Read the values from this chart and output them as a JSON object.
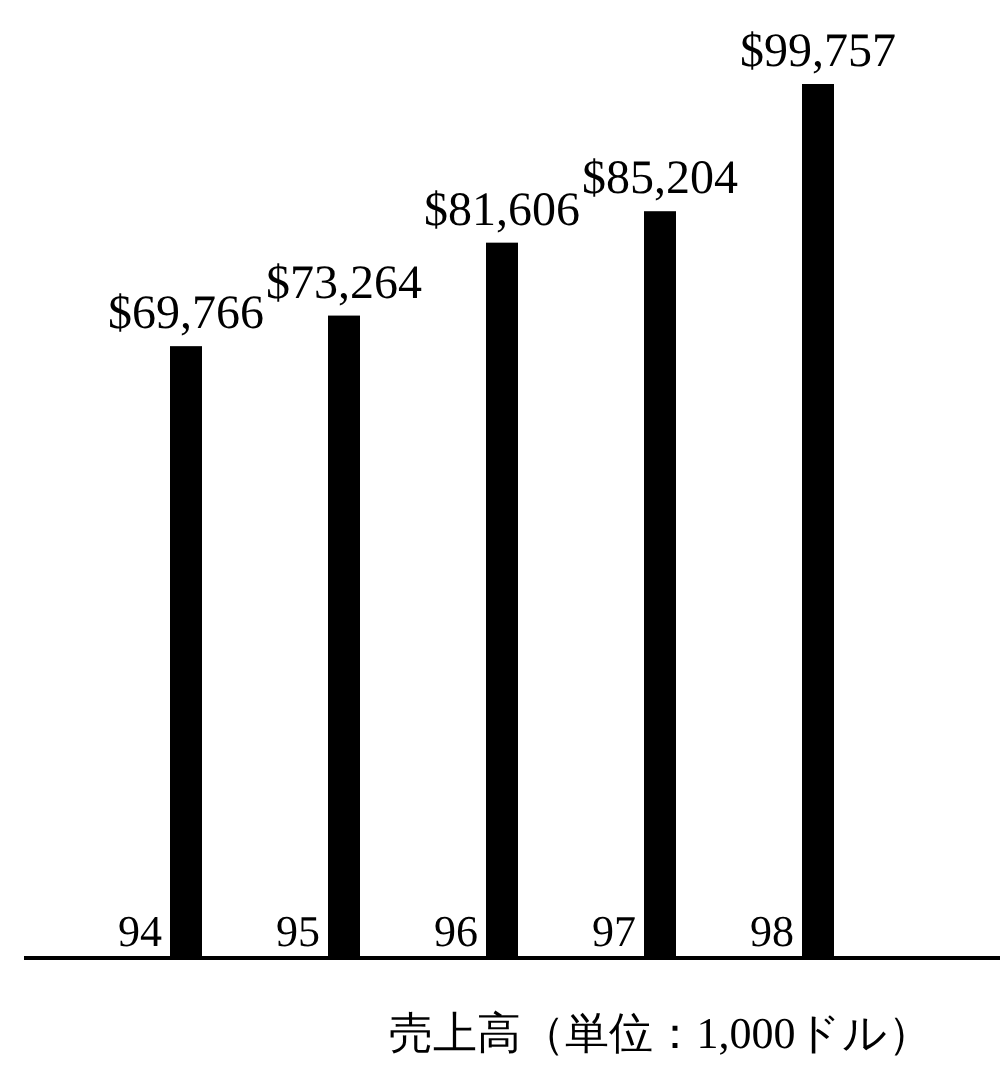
{
  "chart_data": {
    "type": "bar",
    "xlabel": "売上高（単位：1,000ドル）",
    "categories": [
      "94",
      "95",
      "96",
      "97",
      "98"
    ],
    "values": [
      69766,
      73264,
      81606,
      85204,
      99757
    ],
    "value_labels": [
      "$69,766",
      "$73,264",
      "$81,606",
      "$85,204",
      "$99,757"
    ],
    "color": "#000000"
  }
}
